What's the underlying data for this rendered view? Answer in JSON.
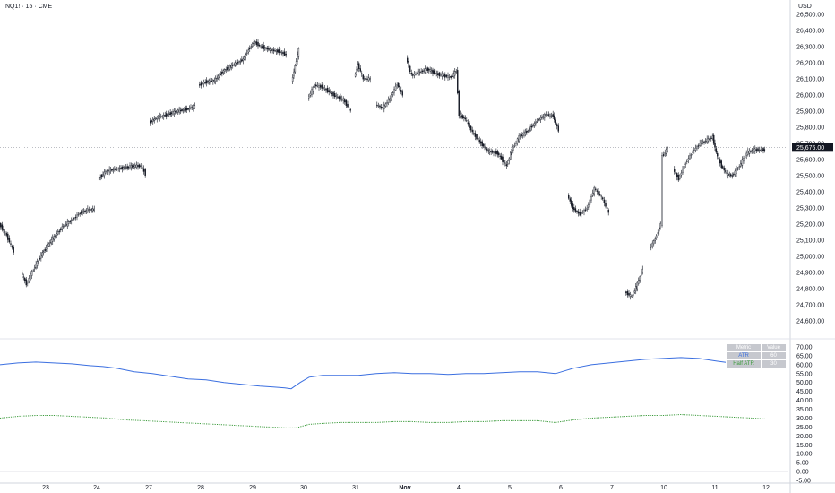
{
  "header": {
    "symbol": "NQ1! · 15 · CME",
    "currency": "USD"
  },
  "colors": {
    "atr_line": "#3b6fe0",
    "half_atr_line": "#3a9a3a",
    "candle": "#131722",
    "grid_line": "#e6e8ec",
    "price_label_bg": "#131722"
  },
  "chart_data": [
    {
      "type": "candlestick",
      "title": "NQ1! · 15 · CME",
      "ylabel": "USD",
      "ylim": [
        24500,
        26600
      ],
      "y_ticks": [
        "26,500.00",
        "26,400.00",
        "26,300.00",
        "26,200.00",
        "26,100.00",
        "26,000.00",
        "25,900.00",
        "25,800.00",
        "25,700.00",
        "25,600.00",
        "25,500.00",
        "25,400.00",
        "25,300.00",
        "25,200.00",
        "25,100.00",
        "25,000.00",
        "24,900.00",
        "24,800.00",
        "24,700.00",
        "24,600.00"
      ],
      "current_price_label": "25,676.00",
      "current_price": 25676,
      "x_ticks": [
        "23",
        "24",
        "27",
        "28",
        "29",
        "30",
        "31",
        "Nov",
        "4",
        "5",
        "6",
        "7",
        "10",
        "11",
        "12"
      ],
      "path_points": [
        [
          0,
          25200
        ],
        [
          8,
          25130
        ],
        [
          16,
          25030
        ],
        [
          24,
          24900
        ],
        [
          30,
          24830
        ],
        [
          38,
          24920
        ],
        [
          48,
          25020
        ],
        [
          58,
          25100
        ],
        [
          70,
          25180
        ],
        [
          82,
          25230
        ],
        [
          90,
          25270
        ],
        [
          100,
          25290
        ],
        [
          106,
          25290
        ],
        [
          110,
          25480
        ],
        [
          120,
          25530
        ],
        [
          130,
          25540
        ],
        [
          140,
          25550
        ],
        [
          150,
          25560
        ],
        [
          158,
          25560
        ],
        [
          163,
          25510
        ],
        [
          167,
          25830
        ],
        [
          176,
          25860
        ],
        [
          188,
          25880
        ],
        [
          198,
          25900
        ],
        [
          208,
          25910
        ],
        [
          218,
          25930
        ],
        [
          222,
          26060
        ],
        [
          230,
          26080
        ],
        [
          240,
          26090
        ],
        [
          250,
          26150
        ],
        [
          262,
          26190
        ],
        [
          272,
          26220
        ],
        [
          278,
          26280
        ],
        [
          284,
          26330
        ],
        [
          292,
          26300
        ],
        [
          302,
          26280
        ],
        [
          312,
          26270
        ],
        [
          320,
          26250
        ],
        [
          326,
          26080
        ],
        [
          330,
          26180
        ],
        [
          334,
          26280
        ],
        [
          338,
          26120
        ],
        [
          344,
          25980
        ],
        [
          352,
          26060
        ],
        [
          360,
          26050
        ],
        [
          368,
          26020
        ],
        [
          376,
          25990
        ],
        [
          384,
          25970
        ],
        [
          392,
          25900
        ],
        [
          396,
          26110
        ],
        [
          400,
          26190
        ],
        [
          406,
          26100
        ],
        [
          414,
          26100
        ],
        [
          420,
          25940
        ],
        [
          428,
          25920
        ],
        [
          436,
          25980
        ],
        [
          444,
          26070
        ],
        [
          450,
          26000
        ],
        [
          454,
          26230
        ],
        [
          460,
          26120
        ],
        [
          468,
          26140
        ],
        [
          478,
          26160
        ],
        [
          488,
          26130
        ],
        [
          496,
          26120
        ],
        [
          504,
          26110
        ],
        [
          510,
          26150
        ],
        [
          513,
          25880
        ],
        [
          520,
          25850
        ],
        [
          528,
          25770
        ],
        [
          536,
          25710
        ],
        [
          546,
          25650
        ],
        [
          556,
          25640
        ],
        [
          566,
          25560
        ],
        [
          572,
          25660
        ],
        [
          580,
          25740
        ],
        [
          590,
          25780
        ],
        [
          600,
          25840
        ],
        [
          610,
          25880
        ],
        [
          618,
          25870
        ],
        [
          624,
          25780
        ],
        [
          628,
          25590
        ],
        [
          634,
          25380
        ],
        [
          640,
          25300
        ],
        [
          648,
          25260
        ],
        [
          656,
          25300
        ],
        [
          664,
          25420
        ],
        [
          672,
          25370
        ],
        [
          680,
          25270
        ],
        [
          684,
          25070
        ],
        [
          690,
          24920
        ],
        [
          698,
          24780
        ],
        [
          706,
          24750
        ],
        [
          712,
          24830
        ],
        [
          718,
          24920
        ],
        [
          726,
          25050
        ],
        [
          732,
          25110
        ],
        [
          738,
          25200
        ],
        [
          740,
          25620
        ],
        [
          746,
          25670
        ],
        [
          752,
          25540
        ],
        [
          758,
          25480
        ],
        [
          766,
          25580
        ],
        [
          774,
          25650
        ],
        [
          782,
          25700
        ],
        [
          790,
          25720
        ],
        [
          796,
          25740
        ],
        [
          800,
          25640
        ],
        [
          806,
          25560
        ],
        [
          812,
          25510
        ],
        [
          818,
          25500
        ],
        [
          826,
          25560
        ],
        [
          834,
          25640
        ],
        [
          842,
          25660
        ],
        [
          850,
          25660
        ],
        [
          854,
          25660
        ]
      ]
    },
    {
      "type": "line",
      "ylim": [
        -5,
        70
      ],
      "y_ticks": [
        "70.00",
        "65.00",
        "60.00",
        "55.00",
        "50.00",
        "45.00",
        "40.00",
        "35.00",
        "30.00",
        "25.00",
        "20.00",
        "15.00",
        "10.00",
        "5.00",
        "0.00",
        "-5.00"
      ],
      "series": [
        {
          "name": "ATR",
          "style": "solid",
          "x": [
            0,
            20,
            40,
            60,
            80,
            100,
            115,
            130,
            150,
            170,
            190,
            210,
            230,
            250,
            270,
            290,
            305,
            318,
            325,
            335,
            345,
            360,
            380,
            400,
            420,
            440,
            460,
            480,
            500,
            520,
            540,
            560,
            580,
            600,
            620,
            640,
            660,
            680,
            700,
            720,
            740,
            760,
            780,
            800,
            815,
            830,
            855
          ],
          "y": [
            60,
            61,
            61.5,
            61,
            60.5,
            59.5,
            59,
            58,
            56,
            55,
            53.5,
            52,
            51.5,
            50,
            49,
            48,
            47.5,
            47,
            46.5,
            50,
            53,
            54,
            54,
            54,
            55,
            55.5,
            55,
            55,
            54.5,
            55,
            55,
            55.5,
            56,
            56,
            55,
            58,
            60,
            61,
            62,
            63,
            63.5,
            64,
            63.5,
            62,
            61,
            60,
            59
          ]
        },
        {
          "name": "Half ATR",
          "style": "dotted",
          "x": [
            0,
            20,
            40,
            60,
            80,
            100,
            120,
            140,
            160,
            180,
            200,
            220,
            240,
            260,
            280,
            300,
            320,
            330,
            345,
            360,
            380,
            400,
            420,
            440,
            460,
            480,
            500,
            520,
            540,
            560,
            580,
            600,
            620,
            640,
            660,
            680,
            700,
            720,
            740,
            760,
            780,
            800,
            820,
            840,
            855
          ],
          "y": [
            30,
            31,
            31.5,
            31.5,
            31,
            30.5,
            30,
            29,
            28.5,
            28,
            27.5,
            27,
            26.5,
            26,
            25.5,
            25,
            24.5,
            24.5,
            26.5,
            27,
            27.5,
            27.5,
            27.5,
            28,
            28,
            27.5,
            27.5,
            28,
            28,
            28.5,
            28.5,
            28.5,
            27.5,
            29,
            30,
            30.5,
            31,
            31.5,
            31.5,
            32,
            31.5,
            31,
            30.5,
            30,
            29.5
          ]
        }
      ]
    }
  ],
  "metrics_table": {
    "header": [
      "Metric",
      "Value"
    ],
    "rows": [
      [
        "ATR",
        "60"
      ],
      [
        "Half ATR",
        "30"
      ]
    ]
  }
}
